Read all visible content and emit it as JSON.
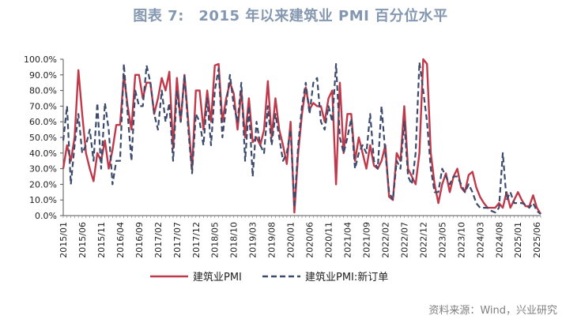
{
  "title": "图表 7:　2015 年以来建筑业 PMI 百分位水平",
  "source": "资料来源：Wind，兴业研究",
  "colors": {
    "series1": "#c0394b",
    "series2": "#3c4a6b",
    "title": "#8497b0"
  },
  "chart_data": {
    "type": "line",
    "ylim": [
      0,
      100
    ],
    "yticks": [
      "0.0%",
      "10.0%",
      "20.0%",
      "30.0%",
      "40.0%",
      "50.0%",
      "60.0%",
      "70.0%",
      "80.0%",
      "90.0%",
      "100.0%"
    ],
    "xtick_labels": [
      "2015/01",
      "2015/06",
      "2015/11",
      "2016/04",
      "2016/09",
      "2017/02",
      "2017/07",
      "2017/12",
      "2018/05",
      "2018/10",
      "2019/03",
      "2019/08",
      "2020/01",
      "2020/06",
      "2020/11",
      "2021/04",
      "2021/09",
      "2022/02",
      "2022/07",
      "2022/12",
      "2023/05",
      "2023/10",
      "2024/03",
      "2024/08",
      "2025/01",
      "2025/06"
    ],
    "x_start": "2015/01",
    "x_end": "2025/08",
    "legend_position": "bottom",
    "series": [
      {
        "name": "建筑业PMI",
        "style": "solid",
        "values": [
          30,
          45,
          35,
          50,
          93,
          65,
          40,
          30,
          22,
          40,
          35,
          48,
          30,
          42,
          58,
          58,
          90,
          70,
          55,
          90,
          90,
          75,
          85,
          85,
          65,
          75,
          88,
          80,
          92,
          43,
          88,
          60,
          90,
          60,
          30,
          80,
          80,
          55,
          80,
          60,
          96,
          97,
          60,
          75,
          85,
          78,
          55,
          80,
          50,
          75,
          47,
          50,
          45,
          55,
          86,
          50,
          75,
          55,
          45,
          33,
          60,
          2,
          40,
          65,
          82,
          68,
          72,
          70,
          70,
          60,
          75,
          80,
          20,
          85,
          40,
          65,
          65,
          35,
          50,
          40,
          30,
          45,
          32,
          30,
          35,
          45,
          12,
          10,
          40,
          35,
          70,
          30,
          25,
          20,
          40,
          100,
          97,
          40,
          20,
          8,
          20,
          27,
          15,
          25,
          30,
          18,
          15,
          26,
          28,
          18,
          12,
          8,
          5,
          5,
          5,
          8,
          5,
          15,
          5,
          10,
          15,
          10,
          6,
          6,
          13,
          5,
          1
        ]
      },
      {
        "name": "建筑业PMI:新订单",
        "style": "dashed",
        "values": [
          48,
          70,
          20,
          45,
          65,
          40,
          45,
          55,
          35,
          72,
          30,
          72,
          55,
          20,
          35,
          35,
          97,
          65,
          35,
          80,
          70,
          70,
          96,
          85,
          65,
          55,
          80,
          60,
          72,
          35,
          80,
          60,
          90,
          55,
          27,
          65,
          60,
          45,
          75,
          45,
          80,
          94,
          50,
          70,
          90,
          70,
          60,
          85,
          35,
          70,
          25,
          60,
          45,
          40,
          70,
          45,
          65,
          50,
          35,
          40,
          55,
          5,
          45,
          70,
          85,
          65,
          85,
          88,
          60,
          55,
          70,
          60,
          97,
          50,
          40,
          50,
          62,
          30,
          40,
          45,
          40,
          65,
          35,
          30,
          70,
          40,
          15,
          10,
          35,
          30,
          60,
          25,
          20,
          40,
          98,
          80,
          60,
          30,
          15,
          15,
          30,
          25,
          20,
          25,
          25,
          20,
          15,
          20,
          15,
          8,
          5,
          5,
          5,
          3,
          2,
          5,
          40,
          10,
          15,
          8,
          8,
          8,
          7,
          5,
          8,
          3,
          1
        ]
      }
    ]
  }
}
